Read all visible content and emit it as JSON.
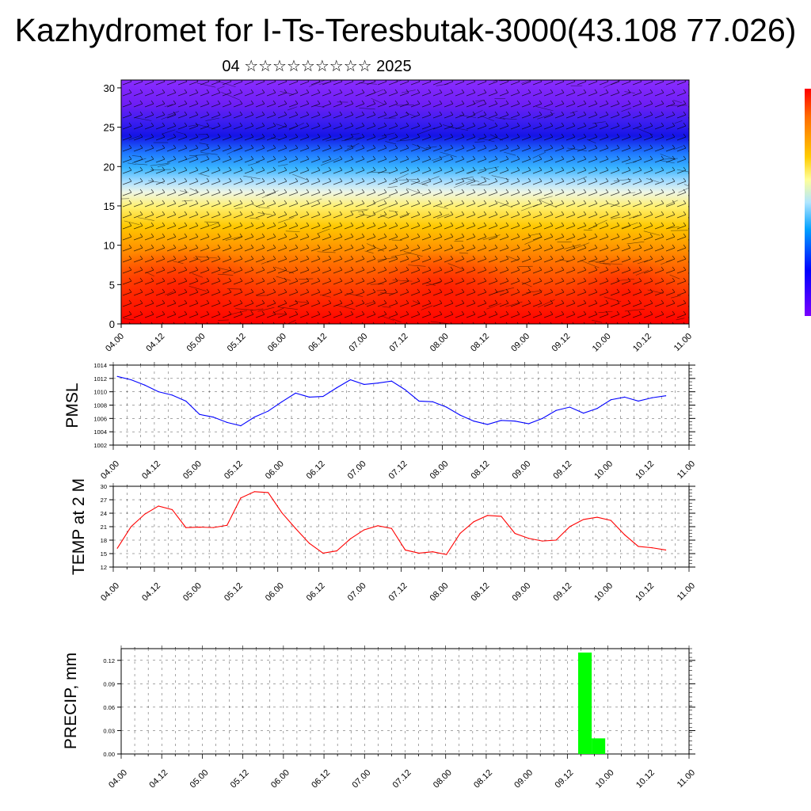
{
  "title": "Kazhydromet for I-Ts-Teresbutak-3000(43.108 77.026)",
  "subtitle": "04 ☆☆☆☆☆☆☆☆☆ 2025",
  "colors": {
    "pmsl_line": "#0000ff",
    "temp_line": "#ff0000",
    "precip_bar": "#00ff00",
    "grid": "#000000",
    "colorbar_top": "#ff0000",
    "colorbar_bottom": "#5a00ff"
  },
  "chart_data": [
    {
      "id": "cross_section",
      "type": "heatmap",
      "title": "",
      "xlabel": "",
      "ylabel": "",
      "x_ticks": [
        "04.00",
        "04.12",
        "05.00",
        "05.12",
        "06.00",
        "06.12",
        "07.00",
        "07.12",
        "08.00",
        "08.12",
        "09.00",
        "09.12",
        "10.00",
        "10.12",
        "11.00"
      ],
      "ylim": [
        0,
        31
      ],
      "y_ticks": [
        0,
        5,
        10,
        15,
        20,
        25,
        30
      ],
      "overlay": "wind barbs",
      "color_scale": [
        "#ff0000",
        "#ff6a00",
        "#ffcc00",
        "#ffff99",
        "#b0e6ff",
        "#00a0ff",
        "#0000ff",
        "#7a00ff"
      ]
    },
    {
      "id": "pmsl",
      "type": "line",
      "ylabel": "PMSL",
      "ylim": [
        1002,
        1014
      ],
      "y_ticks": [
        1002,
        1004,
        1006,
        1008,
        1010,
        1012,
        1014
      ],
      "x_ticks": [
        "04.00",
        "04.12",
        "05.00",
        "05.12",
        "06.00",
        "06.12",
        "07.00",
        "07.12",
        "08.00",
        "08.12",
        "09.00",
        "09.12",
        "10.00",
        "10.12",
        "11.00"
      ],
      "x_range": [
        0,
        42
      ],
      "grid": true,
      "x": [
        0,
        1,
        2,
        3,
        4,
        5,
        6,
        7,
        8,
        9,
        10,
        11,
        12,
        13,
        14,
        15,
        16,
        17,
        18,
        19,
        20,
        21,
        22,
        23,
        24,
        25,
        26,
        27,
        28,
        29,
        30,
        31,
        32,
        33,
        34,
        35,
        36,
        37,
        38,
        39,
        40
      ],
      "values": [
        1012.3,
        1011.8,
        1011.0,
        1010.0,
        1009.5,
        1008.6,
        1006.6,
        1006.2,
        1005.4,
        1004.9,
        1006.2,
        1007.1,
        1008.5,
        1009.8,
        1009.2,
        1009.3,
        1010.6,
        1011.8,
        1011.1,
        1011.3,
        1011.6,
        1010.3,
        1008.6,
        1008.5,
        1007.7,
        1006.5,
        1005.6,
        1005.1,
        1005.7,
        1005.6,
        1005.2,
        1006.0,
        1007.2,
        1007.7,
        1006.8,
        1007.5,
        1008.8,
        1009.2,
        1008.6,
        1009.1,
        1009.4
      ]
    },
    {
      "id": "temp2m",
      "type": "line",
      "ylabel": "TEMP at 2 M",
      "ylim": [
        12,
        30
      ],
      "y_ticks": [
        12,
        15,
        18,
        21,
        24,
        27,
        30
      ],
      "x_ticks": [
        "04.00",
        "04.12",
        "05.00",
        "05.12",
        "06.00",
        "06.12",
        "07.00",
        "07.12",
        "08.00",
        "08.12",
        "09.00",
        "09.12",
        "10.00",
        "10.12",
        "11.00"
      ],
      "x_range": [
        0,
        42
      ],
      "grid": true,
      "x": [
        0,
        1,
        2,
        3,
        4,
        5,
        6,
        7,
        8,
        9,
        10,
        11,
        12,
        13,
        14,
        15,
        16,
        17,
        18,
        19,
        20,
        21,
        22,
        23,
        24,
        25,
        26,
        27,
        28,
        29,
        30,
        31,
        32,
        33,
        34,
        35,
        36,
        37,
        38,
        39,
        40
      ],
      "values": [
        16.2,
        21.0,
        23.8,
        25.6,
        24.8,
        20.8,
        20.9,
        20.8,
        21.3,
        27.4,
        28.8,
        28.6,
        24.1,
        20.6,
        17.3,
        15.1,
        15.6,
        18.3,
        20.3,
        21.2,
        20.6,
        15.8,
        15.1,
        15.4,
        14.8,
        19.5,
        22.1,
        23.5,
        23.3,
        19.5,
        18.4,
        17.8,
        18.0,
        21.0,
        22.6,
        23.1,
        22.4,
        19.2,
        16.6,
        16.3,
        15.8
      ]
    },
    {
      "id": "precip",
      "type": "bar",
      "ylabel": "PRECIP, mm",
      "ylim": [
        0,
        0.135
      ],
      "y_ticks": [
        "0.00",
        "0.03",
        "0.06",
        "0.09",
        "0.12"
      ],
      "x_ticks": [
        "04.00",
        "04.12",
        "05.00",
        "05.12",
        "06.00",
        "06.12",
        "07.00",
        "07.12",
        "08.00",
        "08.12",
        "09.00",
        "09.12",
        "10.00",
        "10.12",
        "11.00"
      ],
      "x_range": [
        0,
        42
      ],
      "grid": true,
      "x": [
        33,
        34
      ],
      "values": [
        0.13,
        0.02
      ]
    }
  ]
}
